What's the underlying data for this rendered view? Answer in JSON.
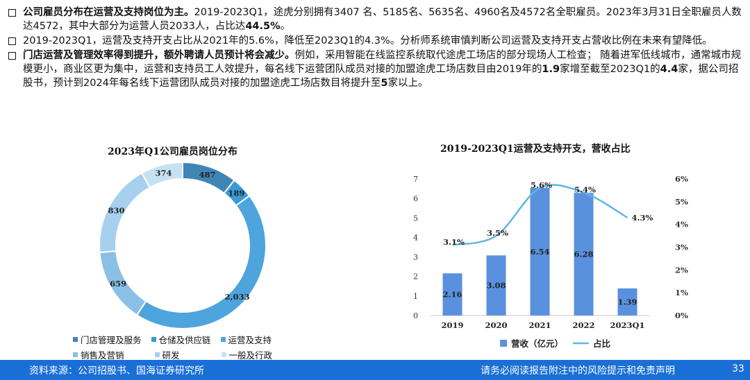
{
  "bullets": [
    {
      "bold": "公司雇员分布在运营及支持岗位为主。",
      "text": "2019-2023Q1，途虎分别拥有3407 名、5185名、5635名、4960名及4572名全职雇员。2023年3月31日全职雇员人数达4572，其中大部分为运营人员2033人，占比达",
      "tail_bold": "44.5%",
      "tail": "。"
    },
    {
      "bold": "",
      "text": "2019-2023Q1，运营及支持开支占比从2021年的5.6%，降低至2023Q1的4.3%。分析师系统审慎判断公司运营及支持开支占营收比例在未来有望降低。",
      "tail_bold": "",
      "tail": ""
    },
    {
      "bold": "门店运营及管理效率得到提升，额外聘请人员预计将会减少。",
      "text": "例如，采用智能在线监控系统取代途虎工场店的部分现场人工检查； 随着进军低线城市，通常城市规模更小，商业区更为集中，运营和支持员工人效提升，每名线下运营团队成员对接的加盟途虎工场店数目由2019年的",
      "mid_bold": "1.9",
      "mid": "家增至截至2023Q1的",
      "mid_bold2": "4.4",
      "mid2": "家，据公司招股书，预计到2024年每名线下运营团队成员对接的加盟途虎工场店数目将提升至",
      "tail_bold": "5",
      "tail": "家以上。"
    }
  ],
  "chart_data": [
    {
      "type": "pie",
      "title": "2023年Q1公司雇员岗位分布",
      "categories": [
        "门店管理及服务",
        "仓储及供应链",
        "运营及支持",
        "销售及营销",
        "研发",
        "一般及行政"
      ],
      "values": [
        487,
        189,
        2033,
        659,
        830,
        374
      ],
      "value_labels": [
        "487",
        "189",
        "2,033",
        "659",
        "830",
        "374"
      ],
      "colors": [
        "#3f86b5",
        "#3a9ad6",
        "#4ea4dc",
        "#8ac0e6",
        "#a6d0ee",
        "#c7e1f4"
      ]
    },
    {
      "type": "bar",
      "title": "2019-2023Q1运营及支持开支，营收占比",
      "categories": [
        "2019",
        "2020",
        "2021",
        "2022",
        "2023Q1"
      ],
      "series": [
        {
          "name": "营收（亿元）",
          "values": [
            2.16,
            3.08,
            6.54,
            6.28,
            1.39
          ],
          "labels": [
            "2.16",
            "3.08",
            "6.54",
            "6.28",
            "1.39"
          ],
          "color": "#5a91de"
        },
        {
          "name": "占比",
          "type": "line",
          "values": [
            3.1,
            3.5,
            5.6,
            5.4,
            4.3
          ],
          "labels": [
            "3.1%",
            "3.5%",
            "5.6%",
            "5.4%",
            "4.3%"
          ],
          "color": "#5fb6e4"
        }
      ],
      "ylim": [
        0,
        7
      ],
      "yticks": [
        "0",
        "1",
        "2",
        "3",
        "4",
        "5",
        "6",
        "7"
      ],
      "y2lim": [
        0,
        6
      ],
      "y2ticks": [
        "0%",
        "1%",
        "2%",
        "3%",
        "4%",
        "5%",
        "6%"
      ]
    }
  ],
  "footer": {
    "source": "资料来源：公司招股书、国海证券研究所",
    "disclaimer": "请务必阅读报告附注中的风险提示和免责声明",
    "page": "33"
  }
}
